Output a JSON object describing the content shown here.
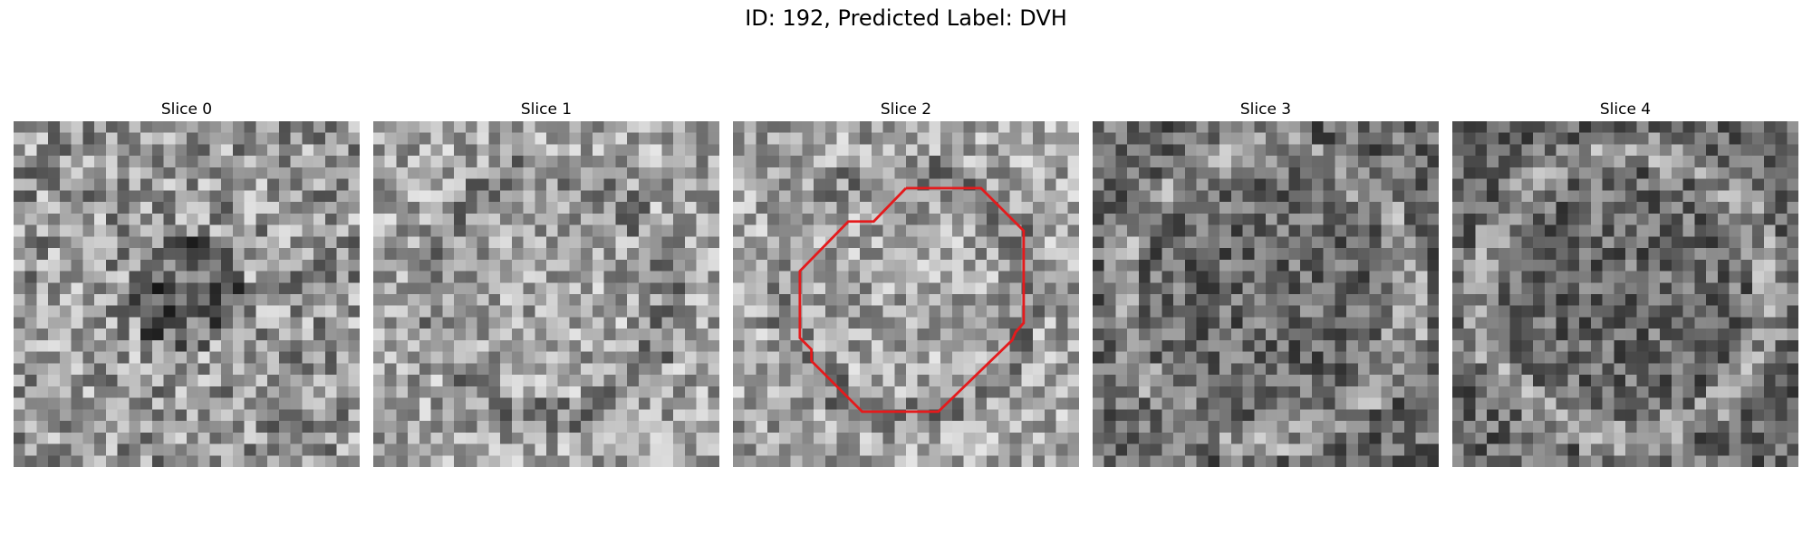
{
  "figure": {
    "title": "ID: 192, Predicted Label: DVH"
  },
  "slices": [
    {
      "title": "Slice 0",
      "tone": "varied",
      "seed": 11,
      "contour": false
    },
    {
      "title": "Slice 1",
      "tone": "light",
      "seed": 23,
      "contour": false
    },
    {
      "title": "Slice 2",
      "tone": "light",
      "seed": 37,
      "contour": true
    },
    {
      "title": "Slice 3",
      "tone": "dark",
      "seed": 41,
      "contour": false
    },
    {
      "title": "Slice 4",
      "tone": "dark",
      "seed": 53,
      "contour": false
    }
  ],
  "colors": {
    "contour": "#e41a1c",
    "background": "#ffffff"
  }
}
